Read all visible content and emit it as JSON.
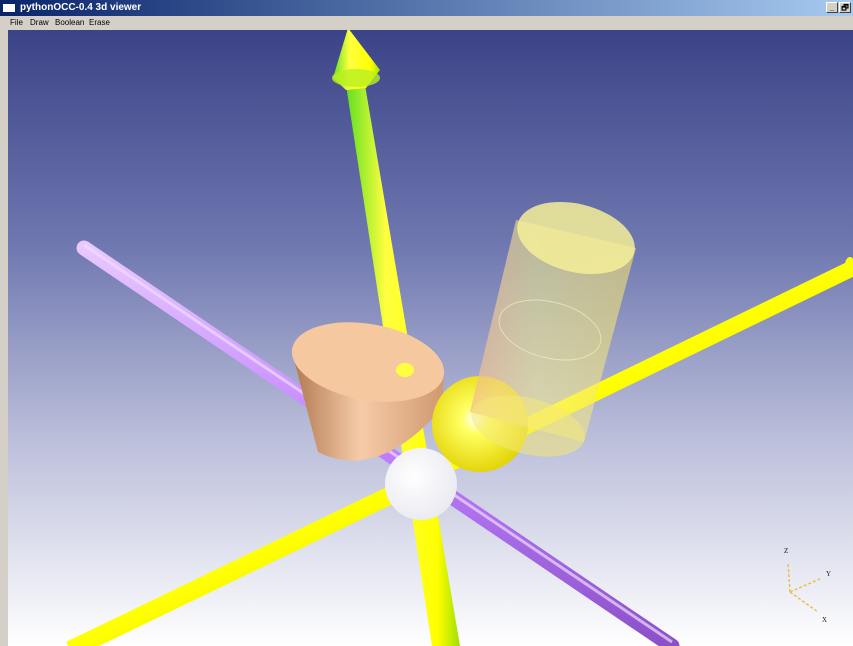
{
  "window": {
    "title": "pythonOCC-0.4 3d viewer",
    "minimize_label": "_",
    "restore_label": "🗗"
  },
  "menu": {
    "items": [
      "File",
      "Draw",
      "Boolean",
      "Erase"
    ]
  },
  "view_triedron": {
    "x_label": "X",
    "y_label": "Y",
    "z_label": "Z"
  },
  "colors": {
    "background_top": "#3b4387",
    "background_bottom": "#ffffff",
    "axis_yellow": "#ffff00",
    "axis_purple": "#c080ff",
    "cone": "#f2c09a",
    "cylinder_transparent": "#f0ec80",
    "sphere": "#ffff20",
    "origin_sphere": "#ffffff"
  },
  "scene_objects": [
    "z-axis-arrow",
    "purple-axis",
    "yellow-axis-right",
    "yellow-axis-left",
    "cone",
    "transparent-cylinder",
    "yellow-sphere",
    "white-origin-sphere"
  ]
}
